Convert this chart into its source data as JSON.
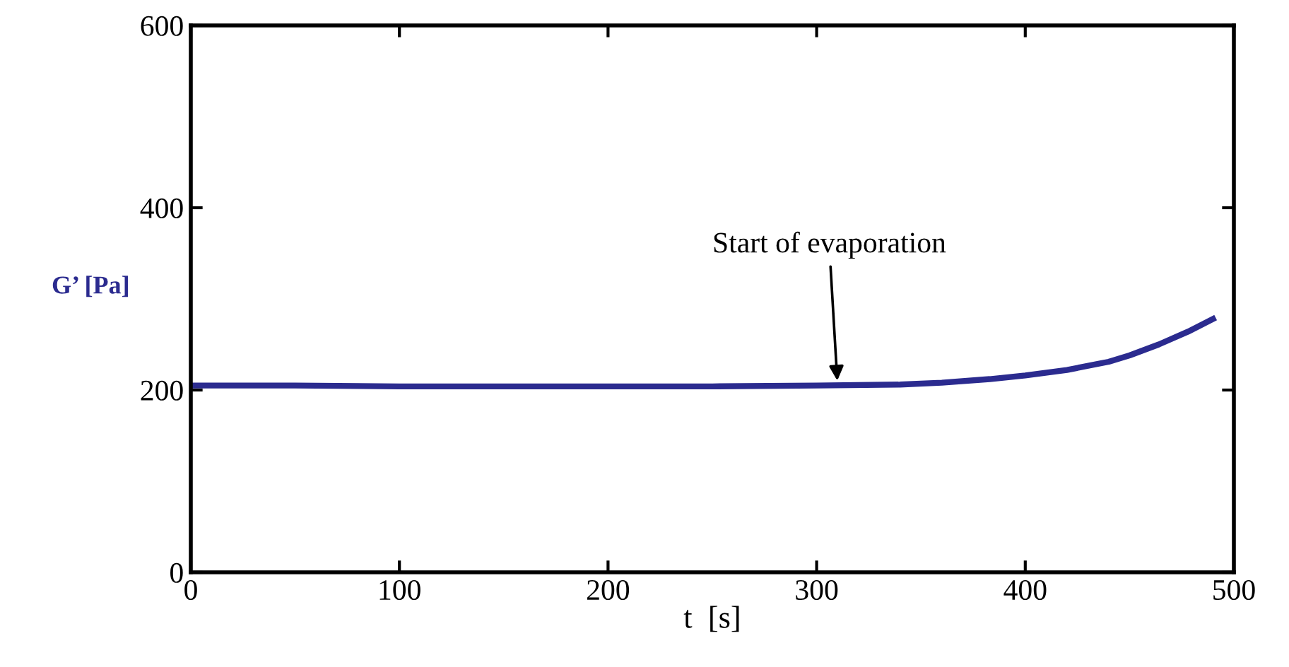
{
  "chart_data": {
    "type": "line",
    "xlabel": "t  [s]",
    "ylabel": "G’ [Pa]",
    "x": [
      0,
      50,
      100,
      150,
      200,
      250,
      300,
      340,
      360,
      383,
      400,
      420,
      440,
      450,
      464,
      478,
      490
    ],
    "series": [
      {
        "color": "#2b2b8f",
        "values": [
          205,
          205,
          204,
          204,
          204,
          204,
          205,
          206,
          208,
          212,
          216,
          222,
          231,
          238,
          250,
          264,
          278
        ]
      }
    ],
    "xlim": [
      0,
      500
    ],
    "ylim": [
      0,
      600
    ],
    "xticks": [
      0,
      100,
      200,
      300,
      400,
      500
    ],
    "yticks": [
      0,
      200,
      400,
      600
    ],
    "grid": false,
    "legend": false,
    "marker": "none",
    "line_style": "solid",
    "annotations": [
      {
        "text": "Start of evaporation",
        "x": 310,
        "y": 206
      }
    ]
  }
}
